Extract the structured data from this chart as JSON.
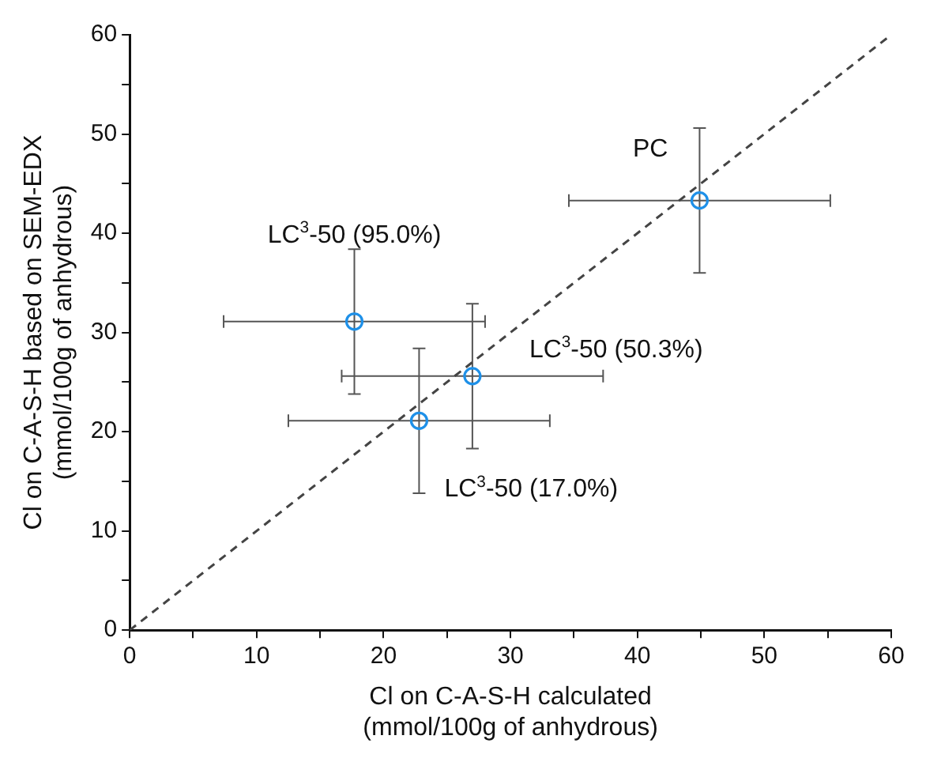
{
  "chart_data": {
    "type": "scatter",
    "xlabel": "Cl on C-A-S-H calculated\n(mmol/100g of anhydrous)",
    "ylabel": "Cl on C-A-S-H based on SEM-EDX\n(mmol/100g of anhydrous)",
    "xlim": [
      0,
      60
    ],
    "ylim": [
      0,
      60
    ],
    "xticks": [
      0,
      {
        "value": 5,
        "label": null
      },
      10,
      {
        "value": 15,
        "label": null
      },
      20,
      {
        "value": 25,
        "label": null
      },
      30,
      {
        "value": 35,
        "label": null
      },
      40,
      {
        "value": 45,
        "label": null
      },
      50,
      {
        "value": 55,
        "label": null
      },
      60
    ],
    "yticks": [
      0,
      {
        "value": 5,
        "label": null
      },
      10,
      {
        "value": 15,
        "label": null
      },
      20,
      {
        "value": 25,
        "label": null
      },
      30,
      {
        "value": 35,
        "label": null
      },
      40,
      {
        "value": 45,
        "label": null
      },
      50,
      {
        "value": 55,
        "label": null
      },
      60
    ],
    "grid": false,
    "legend": false,
    "marker": "circle",
    "series": [
      {
        "color": "#1e90e8",
        "x": [
          44.9,
          17.7,
          27.0,
          22.8
        ],
        "values": [
          43.3,
          31.1,
          25.6,
          21.1
        ],
        "errors": [
          7.3,
          7.3,
          7.3,
          7.3
        ],
        "xerrors": [
          10.3,
          10.3,
          10.3,
          10.3
        ]
      },
      {
        "type": "line",
        "color": "#444444",
        "line_style": "dashed",
        "marker": "none",
        "x": [
          0,
          60
        ],
        "values": [
          0,
          60
        ]
      }
    ],
    "annotations": [
      {
        "text": "PC",
        "x": 44.9,
        "y": 43.3
      },
      {
        "text": "LC$^{3}$-50 (95.0%)",
        "x": 17.7,
        "y": 31.1
      },
      {
        "text": "LC$^{3}$-50 (50.3%)",
        "x": 27.0,
        "y": 25.6
      },
      {
        "text": "LC$^{3}$-50 (17.0%)",
        "x": 22.8,
        "y": 21.1
      }
    ]
  }
}
